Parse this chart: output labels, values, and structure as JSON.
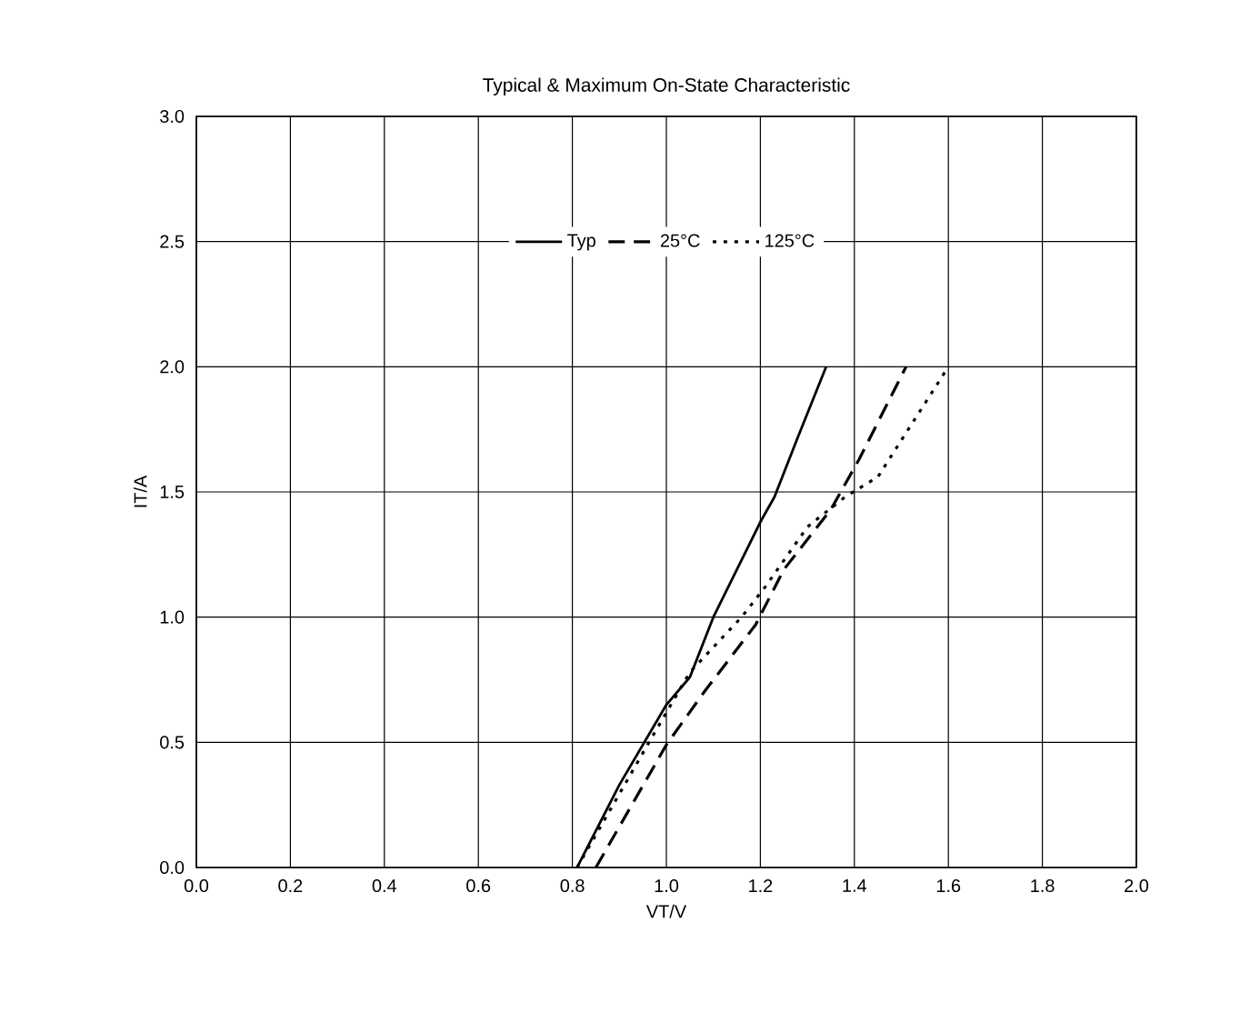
{
  "chart_data": {
    "type": "line",
    "title": "Typical & Maximum On-State Characteristic",
    "xlabel": "VT/V",
    "ylabel": "IT/A",
    "xlim": [
      0,
      2
    ],
    "ylim": [
      0,
      3
    ],
    "xticks": [
      {
        "value": 0,
        "label": "0.0"
      },
      {
        "value": 0.2,
        "label": "0.2"
      },
      {
        "value": 0.4,
        "label": "0.4"
      },
      {
        "value": 0.6,
        "label": "0.6"
      },
      {
        "value": 0.8,
        "label": "0.8"
      },
      {
        "value": 1.0,
        "label": "1.0"
      },
      {
        "value": 1.2,
        "label": "1.2"
      },
      {
        "value": 1.4,
        "label": "1.4"
      },
      {
        "value": 1.6,
        "label": "1.6"
      },
      {
        "value": 1.8,
        "label": "1.8"
      },
      {
        "value": 2.0,
        "label": "2.0"
      }
    ],
    "yticks": [
      {
        "value": 0,
        "label": "0.0"
      },
      {
        "value": 0.5,
        "label": "0.5"
      },
      {
        "value": 1.0,
        "label": "1.0"
      },
      {
        "value": 1.5,
        "label": "1.5"
      },
      {
        "value": 2.0,
        "label": "2.0"
      },
      {
        "value": 2.5,
        "label": "2.5"
      },
      {
        "value": 3.0,
        "label": "3.0"
      }
    ],
    "grid": true,
    "legend": "top",
    "marker": "none",
    "series": [
      {
        "name": "Typ",
        "color": "#000000",
        "line_style": "solid",
        "x": [
          0.81,
          0.9,
          1.0,
          1.05,
          1.1,
          1.2,
          1.23,
          1.28,
          1.34
        ],
        "values": [
          0.0,
          0.33,
          0.65,
          0.76,
          1.0,
          1.38,
          1.48,
          1.72,
          2.0
        ]
      },
      {
        "name": "25°C",
        "color": "#000000",
        "line_style": "dashed",
        "x": [
          0.85,
          1.0,
          1.08,
          1.19,
          1.25,
          1.35,
          1.41,
          1.51
        ],
        "values": [
          0.0,
          0.49,
          0.7,
          0.97,
          1.19,
          1.43,
          1.63,
          2.0
        ]
      },
      {
        "name": "125°C",
        "color": "#000000",
        "line_style": "dotted",
        "x": [
          0.81,
          0.96,
          1.05,
          1.16,
          1.21,
          1.3,
          1.38,
          1.45,
          1.6
        ],
        "values": [
          0.0,
          0.49,
          0.78,
          1.0,
          1.12,
          1.36,
          1.48,
          1.56,
          2.0
        ]
      }
    ]
  }
}
